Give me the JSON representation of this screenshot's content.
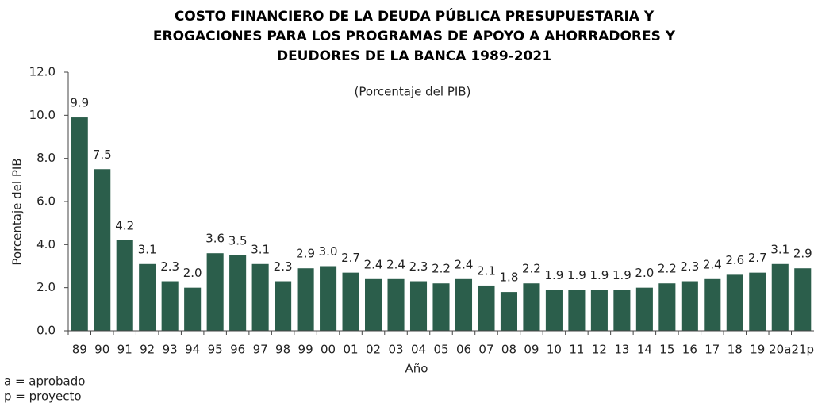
{
  "chart_data": {
    "type": "bar",
    "title": [
      "COSTO FINANCIERO DE LA DEUDA PÚBLICA PRESUPUESTARIA Y",
      "EROGACIONES PARA LOS PROGRAMAS DE APOYO A AHORRADORES Y",
      "DEUDORES DE LA BANCA 1989-2021"
    ],
    "subtitle": "(Porcentaje del PIB)",
    "y_label": "Porcentaje del PIB",
    "x_label": "Año",
    "notes": [
      "a = aprobado",
      "p = proyecto"
    ],
    "categories": [
      "89",
      "90",
      "91",
      "92",
      "93",
      "94",
      "95",
      "96",
      "97",
      "98",
      "99",
      "00",
      "01",
      "02",
      "03",
      "04",
      "05",
      "06",
      "07",
      "08",
      "09",
      "10",
      "11",
      "12",
      "13",
      "14",
      "15",
      "16",
      "17",
      "18",
      "19",
      "20a",
      "21p"
    ],
    "values": [
      9.9,
      7.5,
      4.2,
      3.1,
      2.3,
      2.0,
      3.6,
      3.5,
      3.1,
      2.3,
      2.9,
      3.0,
      2.7,
      2.4,
      2.4,
      2.3,
      2.2,
      2.4,
      2.1,
      1.8,
      2.2,
      1.9,
      1.9,
      1.9,
      1.9,
      2.0,
      2.2,
      2.3,
      2.4,
      2.6,
      2.7,
      3.1,
      2.9
    ],
    "value_labels": [
      "9.9",
      "7.5",
      "4.2",
      "3.1",
      "2.3",
      "2.0",
      "3.6",
      "3.5",
      "3.1",
      "2.3",
      "2.9",
      "3.0",
      "2.7",
      "2.4",
      "2.4",
      "2.3",
      "2.2",
      "2.4",
      "2.1",
      "1.8",
      "2.2",
      "1.9",
      "1.9",
      "1.9",
      "1.9",
      "2.0",
      "2.2",
      "2.3",
      "2.4",
      "2.6",
      "2.7",
      "3.1",
      "2.9"
    ],
    "color": "#2b5e4b",
    "ylim": [
      0,
      12
    ],
    "yticks": [
      {
        "value": 0,
        "label": "0.0"
      },
      {
        "value": 2,
        "label": "2.0"
      },
      {
        "value": 4,
        "label": "4.0"
      },
      {
        "value": 6,
        "label": "6.0"
      },
      {
        "value": 8,
        "label": "8.0"
      },
      {
        "value": 10,
        "label": "10.0"
      },
      {
        "value": 12,
        "label": "12.0"
      }
    ],
    "grid": false
  }
}
